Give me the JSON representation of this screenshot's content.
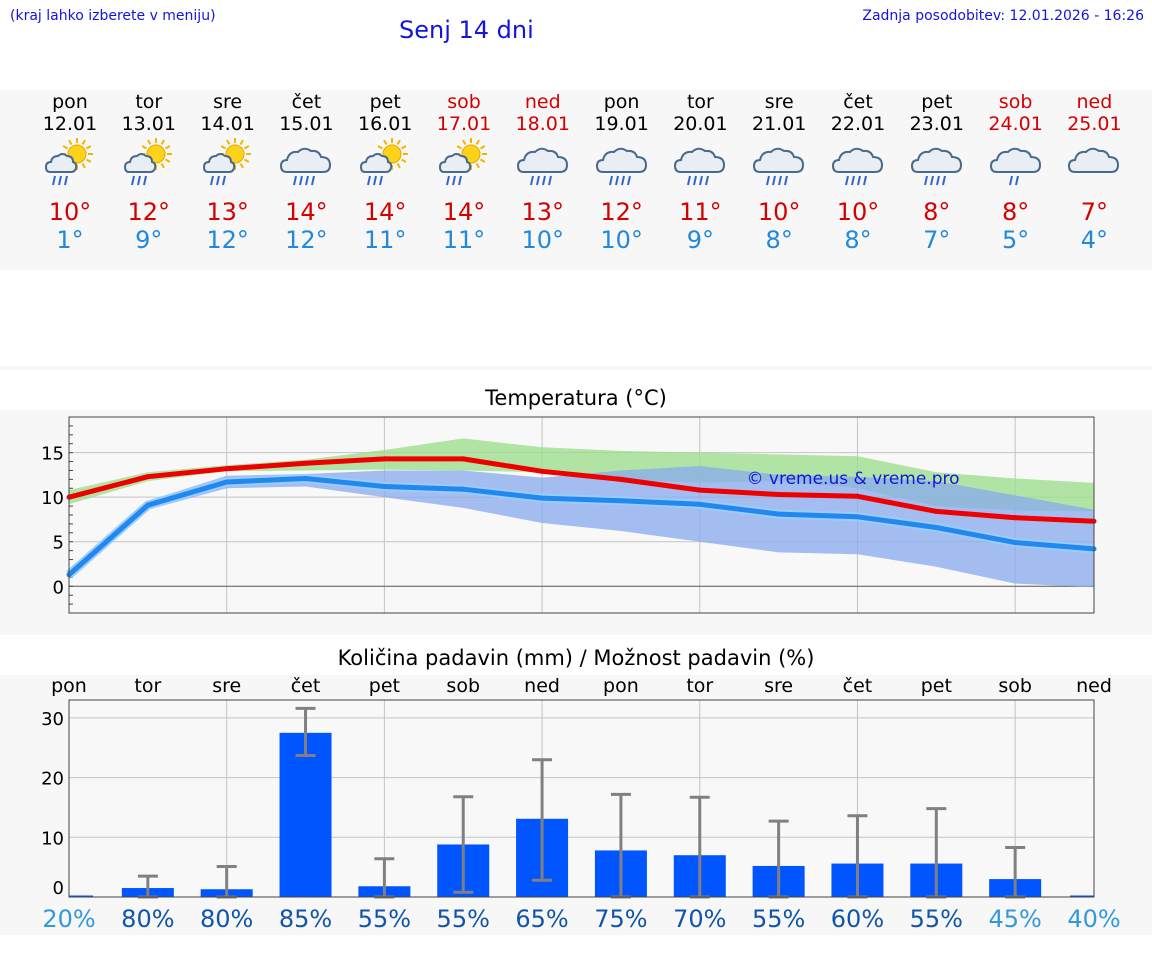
{
  "header": {
    "hint": "(kraj lahko izberete v meniju)",
    "title": "Senj 14 dni",
    "updated": "Zadnja posodobitev: 12.01.2026 - 16:26"
  },
  "colors": {
    "max_temp": "#d40000",
    "min_temp": "#2288dd",
    "weekend": "#d40000",
    "precip_bar": "#0055ff",
    "header_text": "#1414e0"
  },
  "days": [
    {
      "name": "pon",
      "date": "12.01",
      "weekend": false,
      "icon": "sun-cloud-rain-icon",
      "max": "10°",
      "min": "1°"
    },
    {
      "name": "tor",
      "date": "13.01",
      "weekend": false,
      "icon": "sun-cloud-rain-icon",
      "max": "12°",
      "min": "9°"
    },
    {
      "name": "sre",
      "date": "14.01",
      "weekend": false,
      "icon": "sun-cloud-rain-icon",
      "max": "13°",
      "min": "12°"
    },
    {
      "name": "čet",
      "date": "15.01",
      "weekend": false,
      "icon": "cloud-rain-icon",
      "max": "14°",
      "min": "12°"
    },
    {
      "name": "pet",
      "date": "16.01",
      "weekend": false,
      "icon": "sun-cloud-rain-icon",
      "max": "14°",
      "min": "11°"
    },
    {
      "name": "sob",
      "date": "17.01",
      "weekend": true,
      "icon": "sun-cloud-rain-icon",
      "max": "14°",
      "min": "11°"
    },
    {
      "name": "ned",
      "date": "18.01",
      "weekend": true,
      "icon": "cloud-rain-icon",
      "max": "13°",
      "min": "10°"
    },
    {
      "name": "pon",
      "date": "19.01",
      "weekend": false,
      "icon": "cloud-rain-icon",
      "max": "12°",
      "min": "10°"
    },
    {
      "name": "tor",
      "date": "20.01",
      "weekend": false,
      "icon": "cloud-rain-icon",
      "max": "11°",
      "min": "9°"
    },
    {
      "name": "sre",
      "date": "21.01",
      "weekend": false,
      "icon": "cloud-rain-icon",
      "max": "10°",
      "min": "8°"
    },
    {
      "name": "čet",
      "date": "22.01",
      "weekend": false,
      "icon": "cloud-rain-icon",
      "max": "10°",
      "min": "8°"
    },
    {
      "name": "pet",
      "date": "23.01",
      "weekend": false,
      "icon": "cloud-rain-icon",
      "max": "8°",
      "min": "7°"
    },
    {
      "name": "sob",
      "date": "24.01",
      "weekend": true,
      "icon": "cloud-light-rain-icon",
      "max": "8°",
      "min": "5°"
    },
    {
      "name": "ned",
      "date": "25.01",
      "weekend": true,
      "icon": "cloud-icon",
      "max": "7°",
      "min": "4°"
    }
  ],
  "chart_data": [
    {
      "type": "line",
      "title": "Temperatura (°C)",
      "watermark": "© vreme.us & vreme.pro",
      "ylim": [
        -3,
        19
      ],
      "yticks": [
        0,
        5,
        10,
        15
      ],
      "x": [
        0,
        1,
        2,
        3,
        4,
        5,
        6,
        7,
        8,
        9,
        10,
        11,
        12,
        13
      ],
      "series": [
        {
          "name": "max",
          "color": "#ee0000",
          "values": [
            10,
            12.3,
            13.2,
            13.8,
            14.3,
            14.3,
            12.9,
            12.0,
            10.8,
            10.3,
            10.1,
            8.4,
            7.7,
            7.3
          ]
        },
        {
          "name": "min",
          "color": "#2288ee",
          "values": [
            1.3,
            9.1,
            11.7,
            12.1,
            11.2,
            10.9,
            9.9,
            9.6,
            9.2,
            8.1,
            7.8,
            6.6,
            4.9,
            4.2
          ]
        }
      ],
      "bands": [
        {
          "name": "max-range",
          "color": "#99dd88",
          "low": [
            9.2,
            11.8,
            12.9,
            13.0,
            13.1,
            13.0,
            12.8,
            12.0,
            11.6,
            11.8,
            11.0,
            9.0,
            8.5,
            8.4
          ],
          "high": [
            10.8,
            12.8,
            13.6,
            14.2,
            15.3,
            16.6,
            15.6,
            15.2,
            15.0,
            14.8,
            14.6,
            12.8,
            12.1,
            11.6
          ]
        },
        {
          "name": "min-range",
          "color": "#88aaee",
          "low": [
            0.8,
            8.6,
            11.0,
            11.2,
            10.0,
            8.8,
            7.1,
            6.2,
            5.0,
            3.8,
            3.6,
            2.2,
            0.3,
            -0.1
          ],
          "high": [
            1.8,
            9.6,
            12.4,
            12.6,
            13.0,
            13.0,
            12.2,
            13.0,
            13.5,
            12.5,
            12.3,
            11.8,
            10.2,
            8.6
          ]
        }
      ]
    },
    {
      "type": "bar",
      "title": "Količina padavin (mm) / Možnost padavin (%)",
      "categories": [
        "pon",
        "tor",
        "sre",
        "čet",
        "pet",
        "sob",
        "ned",
        "pon",
        "tor",
        "sre",
        "čet",
        "pet",
        "sob",
        "ned"
      ],
      "ylim": [
        0,
        33
      ],
      "yticks": [
        0,
        10,
        20,
        30
      ],
      "values": [
        0,
        1.5,
        1.3,
        27.5,
        1.8,
        8.8,
        13.1,
        7.8,
        7.0,
        5.2,
        5.6,
        5.6,
        3.0,
        0
      ],
      "err_low": [
        0,
        0,
        0,
        23.7,
        0,
        0.8,
        2.8,
        0,
        0,
        0,
        0,
        0,
        0,
        0
      ],
      "err_high": [
        0,
        3.5,
        5.1,
        31.6,
        6.4,
        16.8,
        23.0,
        17.2,
        16.7,
        12.7,
        13.6,
        14.8,
        8.3,
        0
      ],
      "chance": [
        "20%",
        "80%",
        "80%",
        "85%",
        "55%",
        "55%",
        "65%",
        "75%",
        "70%",
        "55%",
        "60%",
        "55%",
        "45%",
        "40%"
      ],
      "chance_colors": [
        "#3399dd",
        "#1155aa",
        "#1155aa",
        "#1155aa",
        "#1155aa",
        "#1155aa",
        "#1155aa",
        "#1155aa",
        "#1155aa",
        "#1155aa",
        "#1155aa",
        "#1155aa",
        "#3399dd",
        "#3399dd"
      ]
    }
  ]
}
